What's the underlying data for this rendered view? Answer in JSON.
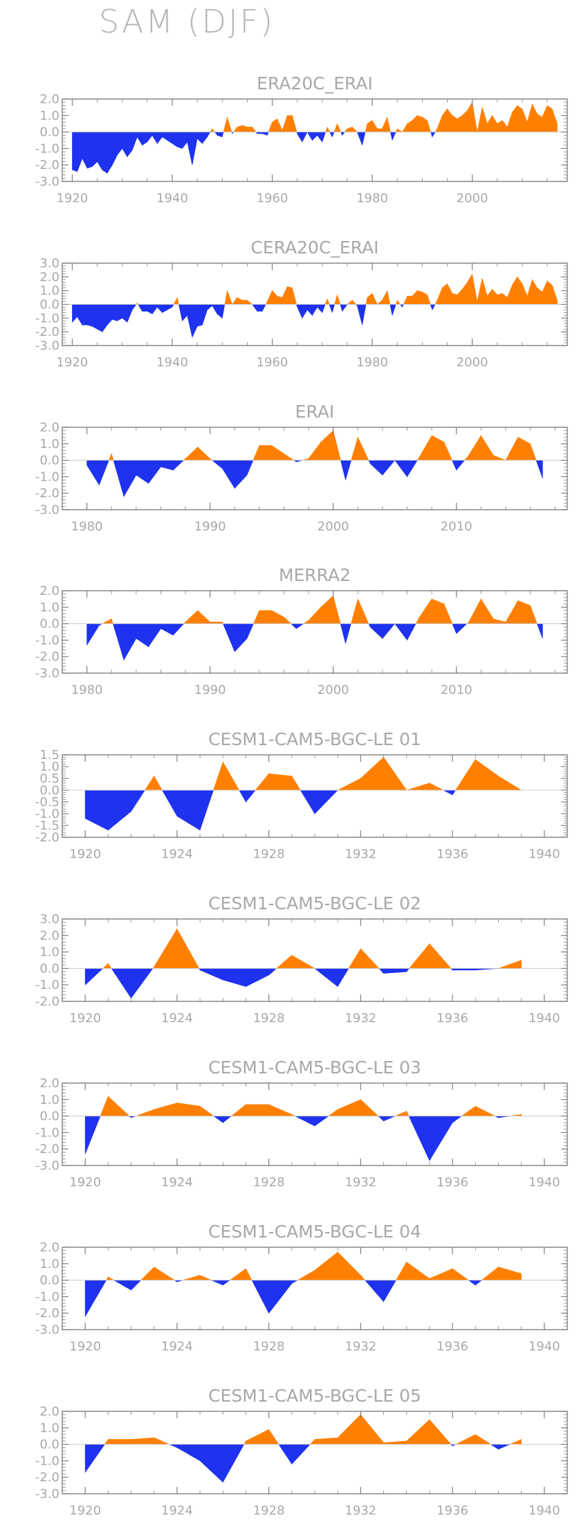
{
  "title": "SAM (DJF)",
  "colors": {
    "positive": "#ff8000",
    "negative": "#1e32f0",
    "axis": "#808080",
    "text": "#a8a8a8"
  },
  "chart_data": [
    {
      "type": "area",
      "title": "ERA20C_ERAI",
      "xlim": [
        1918,
        2019
      ],
      "ylim": [
        -3.0,
        2.0
      ],
      "yticks": [
        "2.0",
        "1.0",
        "0.0",
        "-1.0",
        "-2.0",
        "-3.0"
      ],
      "xticks": [
        "1920",
        "1940",
        "1960",
        "1980",
        "2000"
      ],
      "series": [
        {
          "x": [
            1920,
            1921,
            1922,
            1923,
            1924,
            1925,
            1926,
            1927,
            1928,
            1929,
            1930,
            1931,
            1932,
            1933,
            1934,
            1935,
            1936,
            1937,
            1938,
            1939,
            1940,
            1941,
            1942,
            1943,
            1944,
            1945,
            1946,
            1947,
            1948,
            1949,
            1950,
            1951,
            1952,
            1953,
            1954,
            1955,
            1956,
            1957,
            1958,
            1959,
            1960,
            1961,
            1962,
            1963,
            1964,
            1965,
            1966,
            1967,
            1968,
            1969,
            1970,
            1971,
            1972,
            1973,
            1974,
            1975,
            1976,
            1977,
            1978,
            1979,
            1980,
            1981,
            1982,
            1983,
            1984,
            1985,
            1986,
            1987,
            1988,
            1989,
            1990,
            1991,
            1992,
            1993,
            1994,
            1995,
            1996,
            1997,
            1998,
            1999,
            2000,
            2001,
            2002,
            2003,
            2004,
            2005,
            2006,
            2007,
            2008,
            2009,
            2010,
            2011,
            2012,
            2013,
            2014,
            2015,
            2016,
            2017
          ],
          "values": [
            -2.3,
            -2.4,
            -1.6,
            -2.2,
            -2.1,
            -1.8,
            -2.3,
            -2.5,
            -2.0,
            -1.4,
            -1.0,
            -1.5,
            -1.1,
            -0.3,
            -0.8,
            -0.6,
            -0.2,
            -0.7,
            -0.3,
            -0.5,
            -0.7,
            -0.9,
            -1.0,
            -0.6,
            -2.0,
            -0.4,
            -0.7,
            -0.3,
            0.2,
            -0.2,
            -0.3,
            0.9,
            -0.1,
            0.3,
            0.4,
            0.3,
            0.3,
            -0.1,
            -0.1,
            -0.2,
            0.6,
            0.8,
            0.1,
            1.0,
            1.0,
            -0.1,
            -0.6,
            0.0,
            -0.5,
            -0.2,
            -0.6,
            0.3,
            -0.3,
            0.5,
            -0.2,
            0.2,
            0.3,
            0.0,
            -0.8,
            0.5,
            0.7,
            0.2,
            0.2,
            0.9,
            -0.5,
            0.2,
            0.0,
            0.5,
            0.7,
            1.0,
            0.9,
            0.7,
            -0.3,
            0.2,
            1.0,
            1.4,
            1.0,
            0.8,
            1.0,
            1.3,
            1.8,
            0.0,
            1.5,
            0.5,
            1.0,
            0.5,
            0.7,
            0.3,
            1.2,
            1.6,
            1.4,
            0.6,
            1.7,
            1.1,
            0.9,
            1.6,
            1.4,
            0.5
          ]
        }
      ]
    },
    {
      "type": "area",
      "title": "CERA20C_ERAI",
      "xlim": [
        1918,
        2019
      ],
      "ylim": [
        -3.0,
        3.0
      ],
      "yticks": [
        "3.0",
        "2.0",
        "1.0",
        "0.0",
        "-1.0",
        "-2.0",
        "-3.0"
      ],
      "xticks": [
        "1920",
        "1940",
        "1960",
        "1980",
        "2000"
      ],
      "series": [
        {
          "x": [
            1920,
            1921,
            1922,
            1923,
            1924,
            1925,
            1926,
            1927,
            1928,
            1929,
            1930,
            1931,
            1932,
            1933,
            1934,
            1935,
            1936,
            1937,
            1938,
            1939,
            1940,
            1941,
            1942,
            1943,
            1944,
            1945,
            1946,
            1947,
            1948,
            1949,
            1950,
            1951,
            1952,
            1953,
            1954,
            1955,
            1956,
            1957,
            1958,
            1959,
            1960,
            1961,
            1962,
            1963,
            1964,
            1965,
            1966,
            1967,
            1968,
            1969,
            1970,
            1971,
            1972,
            1973,
            1974,
            1975,
            1976,
            1977,
            1978,
            1979,
            1980,
            1981,
            1982,
            1983,
            1984,
            1985,
            1986,
            1987,
            1988,
            1989,
            1990,
            1991,
            1992,
            1993,
            1994,
            1995,
            1996,
            1997,
            1998,
            1999,
            2000,
            2001,
            2002,
            2003,
            2004,
            2005,
            2006,
            2007,
            2008,
            2009,
            2010,
            2011,
            2012,
            2013,
            2014,
            2015,
            2016,
            2017
          ],
          "values": [
            -1.3,
            -0.9,
            -1.5,
            -1.5,
            -1.6,
            -1.8,
            -2.0,
            -1.5,
            -1.1,
            -1.2,
            -1.0,
            -1.3,
            -0.4,
            0.1,
            -0.5,
            -0.5,
            -0.7,
            -0.2,
            -0.6,
            -0.4,
            -0.2,
            0.5,
            -1.2,
            -0.8,
            -2.4,
            -1.6,
            -1.5,
            -0.4,
            -0.1,
            -0.7,
            -1.0,
            1.0,
            0.0,
            0.5,
            0.3,
            0.3,
            0.0,
            -0.5,
            -0.5,
            0.2,
            1.0,
            0.6,
            0.5,
            1.3,
            1.2,
            -0.2,
            -1.0,
            -0.4,
            -0.8,
            -0.2,
            -0.6,
            0.4,
            -0.6,
            0.7,
            -0.5,
            0.0,
            0.3,
            -0.1,
            -1.5,
            0.5,
            0.8,
            0.0,
            0.3,
            1.0,
            -0.8,
            0.3,
            -0.2,
            0.6,
            0.6,
            1.0,
            0.9,
            0.7,
            -0.4,
            0.3,
            1.2,
            1.5,
            0.8,
            0.7,
            1.1,
            1.6,
            2.2,
            0.2,
            1.9,
            0.6,
            1.1,
            0.7,
            0.8,
            0.5,
            1.4,
            2.0,
            1.5,
            0.6,
            1.8,
            1.2,
            0.9,
            1.7,
            1.4,
            0.3
          ]
        }
      ]
    },
    {
      "type": "area",
      "title": "ERAI",
      "xlim": [
        1978,
        2019
      ],
      "ylim": [
        -3.0,
        2.0
      ],
      "yticks": [
        "2.0",
        "1.0",
        "0.0",
        "-1.0",
        "-2.0",
        "-3.0"
      ],
      "xticks": [
        "1980",
        "1990",
        "2000",
        "2010"
      ],
      "series": [
        {
          "x": [
            1980,
            1981,
            1982,
            1983,
            1984,
            1985,
            1986,
            1987,
            1988,
            1989,
            1990,
            1991,
            1992,
            1993,
            1994,
            1995,
            1996,
            1997,
            1998,
            1999,
            2000,
            2001,
            2002,
            2003,
            2004,
            2005,
            2006,
            2007,
            2008,
            2009,
            2010,
            2011,
            2012,
            2013,
            2014,
            2015,
            2016,
            2017
          ],
          "values": [
            -0.3,
            -1.5,
            0.4,
            -2.2,
            -0.9,
            -1.4,
            -0.4,
            -0.6,
            0.1,
            0.8,
            0.1,
            -0.5,
            -1.7,
            -0.9,
            0.9,
            0.9,
            0.4,
            -0.1,
            0.1,
            1.1,
            1.8,
            -1.2,
            1.4,
            -0.2,
            -0.9,
            0.0,
            -1.0,
            0.2,
            1.5,
            1.1,
            -0.6,
            0.3,
            1.5,
            0.3,
            0.0,
            1.4,
            1.0,
            -1.1
          ]
        }
      ]
    },
    {
      "type": "area",
      "title": "MERRA2",
      "xlim": [
        1978,
        2019
      ],
      "ylim": [
        -3.0,
        2.0
      ],
      "yticks": [
        "2.0",
        "1.0",
        "0.0",
        "-1.0",
        "-2.0",
        "-3.0"
      ],
      "xticks": [
        "1980",
        "1990",
        "2000",
        "2010"
      ],
      "series": [
        {
          "x": [
            1980,
            1981,
            1982,
            1983,
            1984,
            1985,
            1986,
            1987,
            1988,
            1989,
            1990,
            1991,
            1992,
            1993,
            1994,
            1995,
            1996,
            1997,
            1998,
            1999,
            2000,
            2001,
            2002,
            2003,
            2004,
            2005,
            2006,
            2007,
            2008,
            2009,
            2010,
            2011,
            2012,
            2013,
            2014,
            2015,
            2016,
            2017
          ],
          "values": [
            -1.3,
            -0.1,
            0.3,
            -2.2,
            -0.9,
            -1.4,
            -0.3,
            -0.7,
            0.1,
            0.8,
            0.1,
            0.1,
            -1.7,
            -0.9,
            0.8,
            0.8,
            0.4,
            -0.3,
            0.2,
            1.0,
            1.7,
            -1.2,
            1.5,
            -0.2,
            -0.9,
            0.0,
            -1.0,
            0.4,
            1.5,
            1.2,
            -0.6,
            0.1,
            1.5,
            0.3,
            0.1,
            1.4,
            1.1,
            -0.9
          ]
        }
      ]
    },
    {
      "type": "area",
      "title": "CESM1-CAM5-BGC-LE 01",
      "xlim": [
        1919,
        1941
      ],
      "ylim": [
        -2.0,
        1.5
      ],
      "yticks": [
        "1.5",
        "1.0",
        "0.5",
        "0.0",
        "-0.5",
        "-1.0",
        "-1.5",
        "-2.0"
      ],
      "xticks": [
        "1920",
        "1924",
        "1928",
        "1932",
        "1936",
        "1940"
      ],
      "series": [
        {
          "x": [
            1920,
            1921,
            1922,
            1923,
            1924,
            1925,
            1926,
            1927,
            1928,
            1929,
            1930,
            1931,
            1932,
            1933,
            1934,
            1935,
            1936,
            1937,
            1938,
            1939
          ],
          "values": [
            -1.2,
            -1.7,
            -0.9,
            0.6,
            -1.1,
            -1.7,
            1.2,
            -0.5,
            0.7,
            0.6,
            -1.0,
            0.0,
            0.5,
            1.4,
            0.0,
            0.3,
            -0.2,
            1.3,
            0.6,
            0.0
          ]
        }
      ]
    },
    {
      "type": "area",
      "title": "CESM1-CAM5-BGC-LE 02",
      "xlim": [
        1919,
        1941
      ],
      "ylim": [
        -2.0,
        3.0
      ],
      "yticks": [
        "3.0",
        "2.0",
        "1.0",
        "0.0",
        "-1.0",
        "-2.0"
      ],
      "xticks": [
        "1920",
        "1924",
        "1928",
        "1932",
        "1936",
        "1940"
      ],
      "series": [
        {
          "x": [
            1920,
            1921,
            1922,
            1923,
            1924,
            1925,
            1926,
            1927,
            1928,
            1929,
            1930,
            1931,
            1932,
            1933,
            1934,
            1935,
            1936,
            1937,
            1938,
            1939
          ],
          "values": [
            -1.0,
            0.3,
            -1.8,
            0.1,
            2.4,
            -0.1,
            -0.7,
            -1.1,
            -0.4,
            0.8,
            0.0,
            -1.1,
            1.2,
            -0.3,
            -0.2,
            1.5,
            -0.1,
            -0.1,
            0.0,
            0.5
          ]
        }
      ]
    },
    {
      "type": "area",
      "title": "CESM1-CAM5-BGC-LE 03",
      "xlim": [
        1919,
        1941
      ],
      "ylim": [
        -3.0,
        2.0
      ],
      "yticks": [
        "2.0",
        "1.0",
        "0.0",
        "-1.0",
        "-2.0",
        "-3.0"
      ],
      "xticks": [
        "1920",
        "1924",
        "1928",
        "1932",
        "1936",
        "1940"
      ],
      "series": [
        {
          "x": [
            1920,
            1921,
            1922,
            1923,
            1924,
            1925,
            1926,
            1927,
            1928,
            1929,
            1930,
            1931,
            1932,
            1933,
            1934,
            1935,
            1936,
            1937,
            1938,
            1939
          ],
          "values": [
            -2.3,
            1.2,
            -0.1,
            0.4,
            0.8,
            0.6,
            -0.4,
            0.7,
            0.7,
            0.1,
            -0.6,
            0.4,
            1.0,
            -0.3,
            0.3,
            -2.7,
            -0.4,
            0.6,
            -0.1,
            0.1
          ]
        }
      ]
    },
    {
      "type": "area",
      "title": "CESM1-CAM5-BGC-LE 04",
      "xlim": [
        1919,
        1941
      ],
      "ylim": [
        -3.0,
        2.0
      ],
      "yticks": [
        "2.0",
        "1.0",
        "0.0",
        "-1.0",
        "-2.0",
        "-3.0"
      ],
      "xticks": [
        "1920",
        "1924",
        "1928",
        "1932",
        "1936",
        "1940"
      ],
      "series": [
        {
          "x": [
            1920,
            1921,
            1922,
            1923,
            1924,
            1925,
            1926,
            1927,
            1928,
            1929,
            1930,
            1931,
            1932,
            1933,
            1934,
            1935,
            1936,
            1937,
            1938,
            1939
          ],
          "values": [
            -2.2,
            0.2,
            -0.6,
            0.8,
            -0.1,
            0.3,
            -0.3,
            0.7,
            -2.0,
            -0.2,
            0.6,
            1.7,
            0.3,
            -1.3,
            1.1,
            0.1,
            0.7,
            -0.3,
            0.8,
            0.4
          ]
        }
      ]
    },
    {
      "type": "area",
      "title": "CESM1-CAM5-BGC-LE 05",
      "xlim": [
        1919,
        1941
      ],
      "ylim": [
        -3.0,
        2.0
      ],
      "yticks": [
        "2.0",
        "1.0",
        "0.0",
        "-1.0",
        "-2.0",
        "-3.0"
      ],
      "xticks": [
        "1920",
        "1924",
        "1928",
        "1932",
        "1936",
        "1940"
      ],
      "series": [
        {
          "x": [
            1920,
            1921,
            1922,
            1923,
            1924,
            1925,
            1926,
            1927,
            1928,
            1929,
            1930,
            1931,
            1932,
            1933,
            1934,
            1935,
            1936,
            1937,
            1938,
            1939
          ],
          "values": [
            -1.7,
            0.3,
            0.3,
            0.4,
            -0.2,
            -1.0,
            -2.3,
            0.2,
            0.9,
            -1.2,
            0.3,
            0.4,
            1.8,
            0.1,
            0.2,
            1.5,
            -0.1,
            0.6,
            -0.3,
            0.3
          ]
        }
      ]
    }
  ]
}
